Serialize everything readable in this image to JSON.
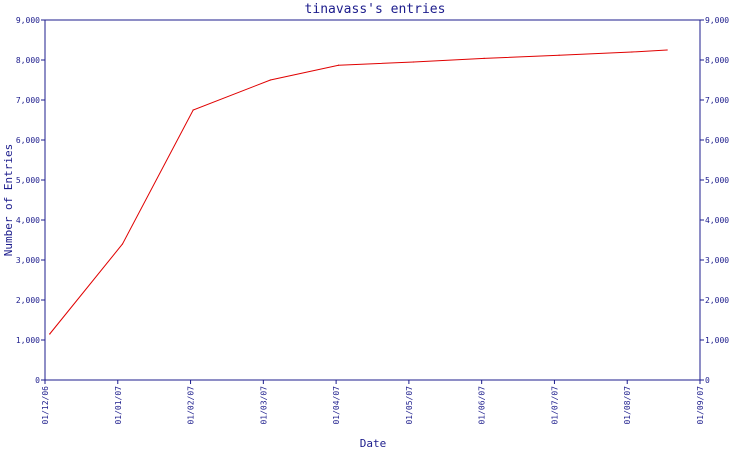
{
  "chart_data": {
    "type": "line",
    "title": "tinavass's entries",
    "xlabel": "Date",
    "ylabel": "Number of Entries",
    "x_tick_labels": [
      "01/12/06",
      "01/01/07",
      "01/02/07",
      "01/03/07",
      "01/04/07",
      "01/05/07",
      "01/06/07",
      "01/07/07",
      "01/08/07",
      "01/09/07"
    ],
    "y_tick_labels": [
      "0",
      "1,000",
      "2,000",
      "3,000",
      "4,000",
      "5,000",
      "6,000",
      "7,000",
      "8,000",
      "9,000"
    ],
    "ylim": [
      0,
      9000
    ],
    "y_axis_right_mirror": true,
    "grid": false,
    "series": [
      {
        "color": "#e00000",
        "points": [
          {
            "x": "2006-12-03",
            "y": 1150
          },
          {
            "x": "2007-01-03",
            "y": 3400
          },
          {
            "x": "2007-02-02",
            "y": 6750
          },
          {
            "x": "2007-03-04",
            "y": 7500
          },
          {
            "x": "2007-04-02",
            "y": 7870
          },
          {
            "x": "2007-05-03",
            "y": 7950
          },
          {
            "x": "2007-06-02",
            "y": 8040
          },
          {
            "x": "2007-07-03",
            "y": 8120
          },
          {
            "x": "2007-08-03",
            "y": 8200
          },
          {
            "x": "2007-08-18",
            "y": 8250
          }
        ]
      }
    ],
    "colors": {
      "axis": "#1c1c8c",
      "text": "#1c1c8c",
      "line": "#e00000",
      "background": "#ffffff"
    }
  }
}
